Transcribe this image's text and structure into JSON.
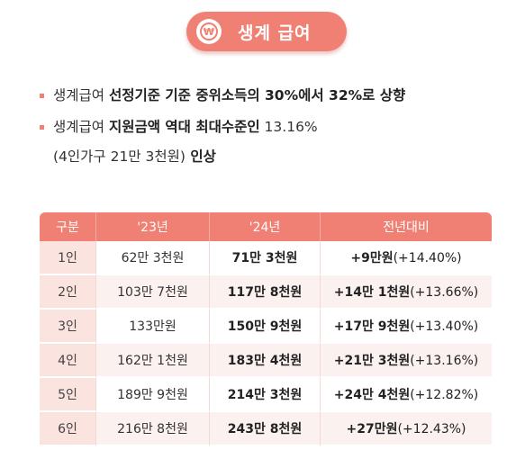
{
  "header": {
    "icon": "won-coin-icon",
    "icon_glyph": "₩",
    "title": "생계 급여"
  },
  "bullets": [
    {
      "normal": "생계급여 ",
      "bold": "선정기준 기준 중위소득의 30%에서 32%로 상향"
    },
    {
      "normal": "생계급여 ",
      "bold": "지원금액 역대 최대수준인",
      "normal2": " 13.16%",
      "line2_normal": "(4인가구 21만 3천원)",
      "line2_bold": " 인상"
    }
  ],
  "table": {
    "headers": [
      "구분",
      "'23년",
      "'24년",
      "전년대비"
    ],
    "rows": [
      {
        "size": "1인",
        "y23": "62만 3천원",
        "y24": "71만 3천원",
        "diff": "+9만원",
        "pct": "(+14.40%)"
      },
      {
        "size": "2인",
        "y23": "103만 7천원",
        "y24": "117만 8천원",
        "diff": "+14만 1천원",
        "pct": "(+13.66%)"
      },
      {
        "size": "3인",
        "y23": "133만원",
        "y24": "150만 9천원",
        "diff": "+17만 9천원",
        "pct": "(+13.40%)"
      },
      {
        "size": "4인",
        "y23": "162만 1천원",
        "y24": "183만 4천원",
        "diff": "+21만 3천원",
        "pct": "(+13.16%)"
      },
      {
        "size": "5인",
        "y23": "189만 9천원",
        "y24": "214만 3천원",
        "diff": "+24만 4천원",
        "pct": "(+12.82%)"
      },
      {
        "size": "6인",
        "y23": "216만 8천원",
        "y24": "243만 8천원",
        "diff": "+27만원",
        "pct": "(+12.43%)"
      }
    ]
  },
  "colors": {
    "accent": "#f08073",
    "row_label_bg": "#fbe3df",
    "band_bg": "#fbf2f0"
  }
}
